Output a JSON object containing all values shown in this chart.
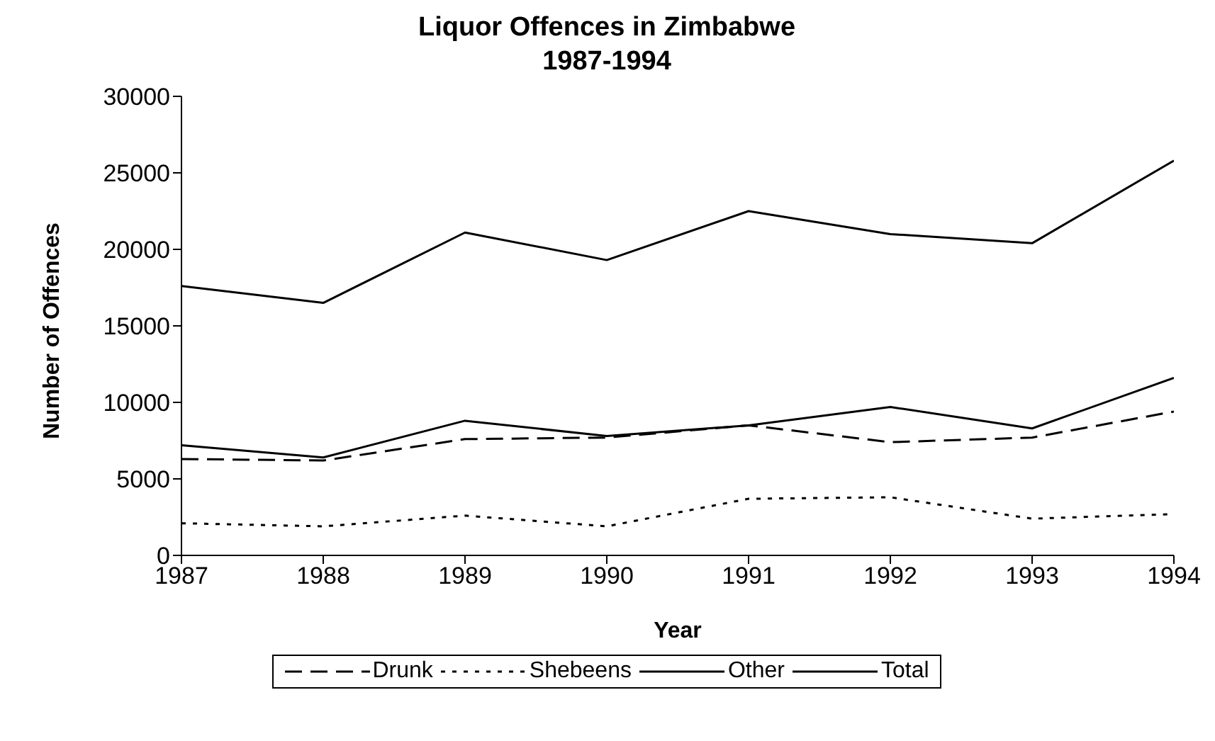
{
  "chart_data": {
    "type": "line",
    "title": "Liquor Offences in Zimbabwe\n1987-1994",
    "xlabel": "Year",
    "ylabel": "Number of Offences",
    "x": [
      1987,
      1988,
      1989,
      1990,
      1991,
      1992,
      1993,
      1994
    ],
    "xlim": [
      1987,
      1994
    ],
    "xticks": [
      1987,
      1988,
      1989,
      1990,
      1991,
      1992,
      1993,
      1994
    ],
    "ylim": [
      0,
      30000
    ],
    "yticks": [
      0,
      5000,
      10000,
      15000,
      20000,
      25000,
      30000
    ],
    "grid": false,
    "legend": "bottom",
    "marker": "none",
    "series": [
      {
        "name": "Drunk",
        "color": "#000000",
        "line_style": "dashed",
        "values": [
          6300,
          6200,
          7600,
          7700,
          8500,
          7400,
          7700,
          9400
        ]
      },
      {
        "name": "Shebeens",
        "color": "#000000",
        "line_style": "dotted",
        "values": [
          2100,
          1900,
          2600,
          1900,
          3700,
          3800,
          2400,
          2700
        ]
      },
      {
        "name": "Other",
        "color": "#000000",
        "line_style": "solid",
        "values": [
          7200,
          6400,
          8800,
          7800,
          8500,
          9700,
          8300,
          11600
        ]
      },
      {
        "name": "Total",
        "color": "#000000",
        "line_style": "solid",
        "values": [
          17600,
          16500,
          21100,
          19300,
          22500,
          21000,
          20400,
          25800
        ]
      }
    ]
  }
}
